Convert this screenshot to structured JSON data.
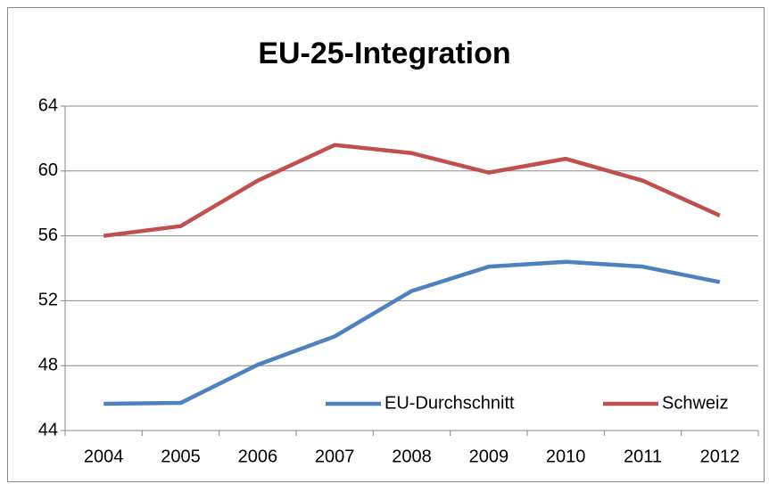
{
  "chart_data": {
    "type": "line",
    "title": "EU-25-Integration",
    "categories": [
      "2004",
      "2005",
      "2006",
      "2007",
      "2008",
      "2009",
      "2010",
      "2011",
      "2012"
    ],
    "series": [
      {
        "name": "EU-Durchschnitt",
        "color": "#4f81bd",
        "values": [
          45.65,
          45.7,
          48.05,
          49.8,
          52.6,
          54.1,
          54.4,
          54.1,
          53.15
        ]
      },
      {
        "name": "Schweiz",
        "color": "#c0504d",
        "values": [
          56.0,
          56.6,
          59.4,
          61.6,
          61.1,
          59.9,
          60.75,
          59.4,
          57.25
        ]
      }
    ],
    "ylim": [
      44,
      64
    ],
    "yticks": [
      44,
      48,
      52,
      56,
      60,
      64
    ],
    "grid": true,
    "legend": "lower right"
  }
}
